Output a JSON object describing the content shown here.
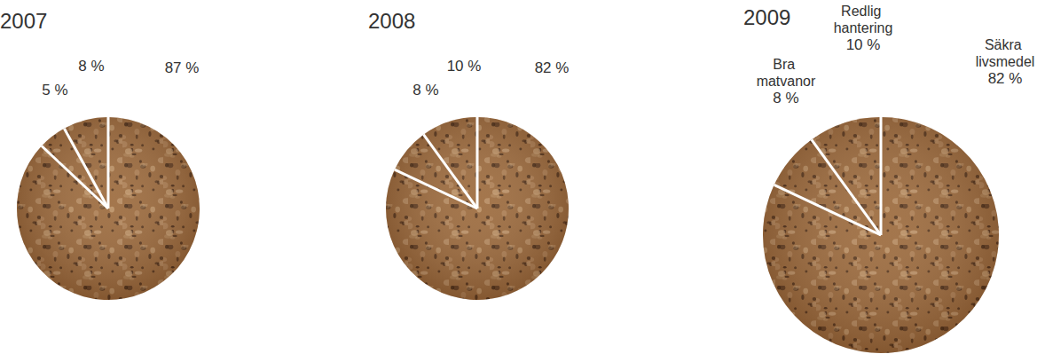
{
  "chart_data": [
    {
      "type": "pie",
      "title": "2007",
      "values": [
        87,
        5,
        8
      ],
      "value_labels": [
        "87 %",
        "5 %",
        "8 %"
      ],
      "color": "#9c6a3c"
    },
    {
      "type": "pie",
      "title": "2008",
      "values": [
        82,
        8,
        10
      ],
      "value_labels": [
        "82 %",
        "8 %",
        "10 %"
      ],
      "color": "#9c6a3c"
    },
    {
      "type": "pie",
      "title": "2009",
      "categories": [
        "Säkra livsmedel",
        "Bra matvanor",
        "Redlig hantering"
      ],
      "values": [
        82,
        8,
        10
      ],
      "value_labels": [
        "82 %",
        "8 %",
        "10 %"
      ],
      "color": "#9c6a3c"
    }
  ]
}
